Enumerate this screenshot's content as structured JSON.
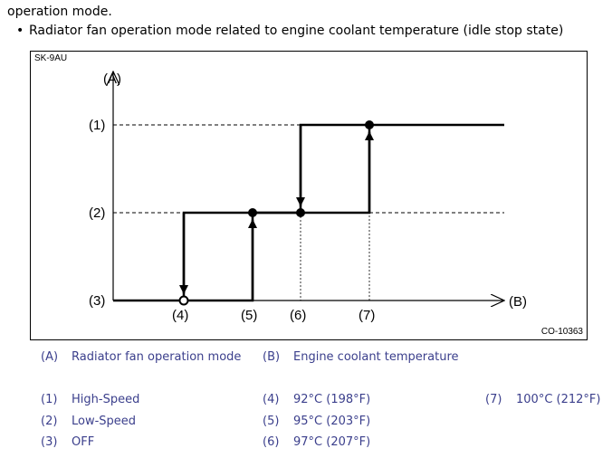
{
  "intro_text": "operation mode.",
  "bullet_text": "Radiator fan operation mode related to engine coolant temperature (idle stop state)",
  "figure": {
    "id_label": "SK-9AU",
    "code_label": "CO-10363",
    "y_axis_label": "(A)",
    "x_axis_label": "(B)",
    "y_levels": [
      "(1)",
      "(2)",
      "(3)"
    ],
    "x_marks": [
      "(4)",
      "(5)",
      "(6)",
      "(7)"
    ]
  },
  "legend": {
    "A": {
      "key": "(A)",
      "text": "Radiator fan operation mode"
    },
    "B": {
      "key": "(B)",
      "text": "Engine coolant temperature"
    },
    "i1": {
      "key": "(1)",
      "text": "High-Speed"
    },
    "i2": {
      "key": "(2)",
      "text": "Low-Speed"
    },
    "i3": {
      "key": "(3)",
      "text": "OFF"
    },
    "i4": {
      "key": "(4)",
      "text": "92°C (198°F)"
    },
    "i5": {
      "key": "(5)",
      "text": "95°C (203°F)"
    },
    "i6": {
      "key": "(6)",
      "text": "97°C (207°F)"
    },
    "i7": {
      "key": "(7)",
      "text": "100°C (212°F)"
    }
  },
  "colors": {
    "legend_text": "#3b3f8c",
    "line": "#000000"
  }
}
